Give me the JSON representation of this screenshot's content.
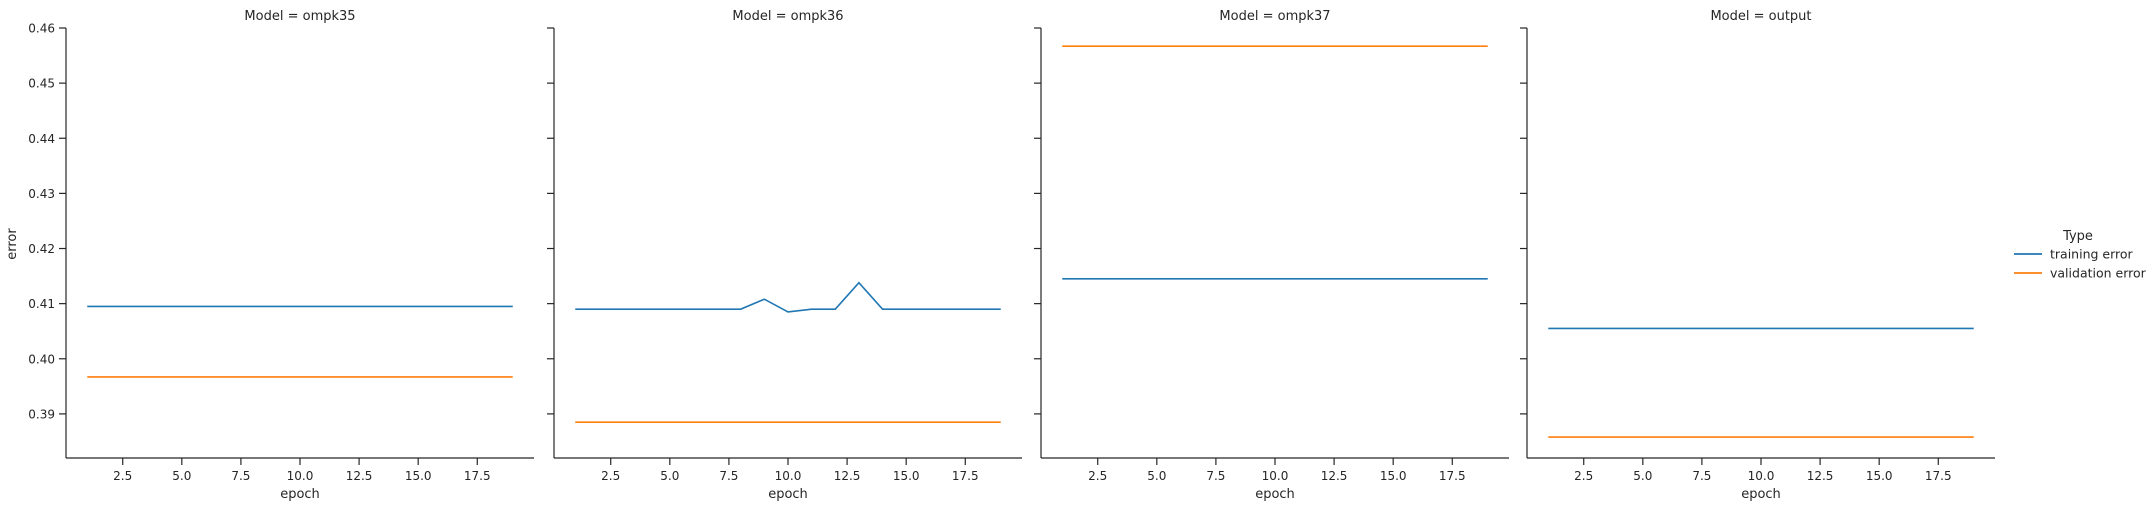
{
  "figure": {
    "ylabel": "error",
    "xlabel": "epoch",
    "legend": {
      "title": "Type",
      "placement": "right-center",
      "entries": [
        {
          "label": "training error",
          "color": "#1f77b4"
        },
        {
          "label": "validation error",
          "color": "#ff7f0e"
        }
      ]
    }
  },
  "chart_data": [
    {
      "type": "line",
      "title": "Model = ompk35",
      "xlabel": "epoch",
      "ylabel": "error",
      "xlim": [
        0.1,
        19.9
      ],
      "ylim": [
        0.382,
        0.46
      ],
      "xticks": [
        "2.5",
        "5.0",
        "7.5",
        "10.0",
        "12.5",
        "15.0",
        "17.5"
      ],
      "yticks": [
        "0.39",
        "0.40",
        "0.41",
        "0.42",
        "0.43",
        "0.44",
        "0.45",
        "0.46"
      ],
      "x": [
        1,
        2,
        3,
        4,
        5,
        6,
        7,
        8,
        9,
        10,
        11,
        12,
        13,
        14,
        15,
        16,
        17,
        18,
        19
      ],
      "series": [
        {
          "name": "training error",
          "color": "#1f77b4",
          "values": [
            0.4095,
            0.4095,
            0.4095,
            0.4095,
            0.4095,
            0.4095,
            0.4095,
            0.4095,
            0.4095,
            0.4095,
            0.4095,
            0.4095,
            0.4095,
            0.4095,
            0.4095,
            0.4095,
            0.4095,
            0.4095,
            0.4095
          ]
        },
        {
          "name": "validation error",
          "color": "#ff7f0e",
          "values": [
            0.3967,
            0.3967,
            0.3967,
            0.3967,
            0.3967,
            0.3967,
            0.3967,
            0.3967,
            0.3967,
            0.3967,
            0.3967,
            0.3967,
            0.3967,
            0.3967,
            0.3967,
            0.3967,
            0.3967,
            0.3967,
            0.3967
          ]
        }
      ]
    },
    {
      "type": "line",
      "title": "Model = ompk36",
      "xlabel": "epoch",
      "ylabel": "",
      "xlim": [
        0.1,
        19.9
      ],
      "ylim": [
        0.382,
        0.46
      ],
      "xticks": [
        "2.5",
        "5.0",
        "7.5",
        "10.0",
        "12.5",
        "15.0",
        "17.5"
      ],
      "yticks": [],
      "x": [
        1,
        2,
        3,
        4,
        5,
        6,
        7,
        8,
        9,
        10,
        11,
        12,
        13,
        14,
        15,
        16,
        17,
        18,
        19
      ],
      "series": [
        {
          "name": "training error",
          "color": "#1f77b4",
          "values": [
            0.409,
            0.409,
            0.409,
            0.409,
            0.409,
            0.409,
            0.409,
            0.409,
            0.4108,
            0.4085,
            0.409,
            0.409,
            0.4138,
            0.409,
            0.409,
            0.409,
            0.409,
            0.409,
            0.409
          ]
        },
        {
          "name": "validation error",
          "color": "#ff7f0e",
          "values": [
            0.3885,
            0.3885,
            0.3885,
            0.3885,
            0.3885,
            0.3885,
            0.3885,
            0.3885,
            0.3885,
            0.3885,
            0.3885,
            0.3885,
            0.3885,
            0.3885,
            0.3885,
            0.3885,
            0.3885,
            0.3885,
            0.3885
          ]
        }
      ]
    },
    {
      "type": "line",
      "title": "Model = ompk37",
      "xlabel": "epoch",
      "ylabel": "",
      "xlim": [
        0.1,
        19.9
      ],
      "ylim": [
        0.382,
        0.46
      ],
      "xticks": [
        "2.5",
        "5.0",
        "7.5",
        "10.0",
        "12.5",
        "15.0",
        "17.5"
      ],
      "yticks": [],
      "x": [
        1,
        2,
        3,
        4,
        5,
        6,
        7,
        8,
        9,
        10,
        11,
        12,
        13,
        14,
        15,
        16,
        17,
        18,
        19
      ],
      "series": [
        {
          "name": "training error",
          "color": "#1f77b4",
          "values": [
            0.4145,
            0.4145,
            0.4145,
            0.4145,
            0.4145,
            0.4145,
            0.4145,
            0.4145,
            0.4145,
            0.4145,
            0.4145,
            0.4145,
            0.4145,
            0.4145,
            0.4145,
            0.4145,
            0.4145,
            0.4145,
            0.4145
          ]
        },
        {
          "name": "validation error",
          "color": "#ff7f0e",
          "values": [
            0.4567,
            0.4567,
            0.4567,
            0.4567,
            0.4567,
            0.4567,
            0.4567,
            0.4567,
            0.4567,
            0.4567,
            0.4567,
            0.4567,
            0.4567,
            0.4567,
            0.4567,
            0.4567,
            0.4567,
            0.4567,
            0.4567
          ]
        }
      ]
    },
    {
      "type": "line",
      "title": "Model = output",
      "xlabel": "epoch",
      "ylabel": "",
      "xlim": [
        0.1,
        19.9
      ],
      "ylim": [
        0.382,
        0.46
      ],
      "xticks": [
        "2.5",
        "5.0",
        "7.5",
        "10.0",
        "12.5",
        "15.0",
        "17.5"
      ],
      "yticks": [],
      "x": [
        1,
        2,
        3,
        4,
        5,
        6,
        7,
        8,
        9,
        10,
        11,
        12,
        13,
        14,
        15,
        16,
        17,
        18,
        19
      ],
      "series": [
        {
          "name": "training error",
          "color": "#1f77b4",
          "values": [
            0.4055,
            0.4055,
            0.4055,
            0.4055,
            0.4055,
            0.4055,
            0.4055,
            0.4055,
            0.4055,
            0.4055,
            0.4055,
            0.4055,
            0.4055,
            0.4055,
            0.4055,
            0.4055,
            0.4055,
            0.4055,
            0.4055
          ]
        },
        {
          "name": "validation error",
          "color": "#ff7f0e",
          "values": [
            0.3858,
            0.3858,
            0.3858,
            0.3858,
            0.3858,
            0.3858,
            0.3858,
            0.3858,
            0.3858,
            0.3858,
            0.3858,
            0.3858,
            0.3858,
            0.3858,
            0.3858,
            0.3858,
            0.3858,
            0.3858,
            0.3858
          ]
        }
      ]
    }
  ]
}
